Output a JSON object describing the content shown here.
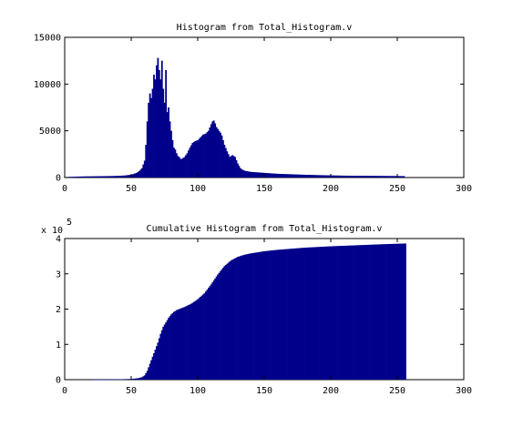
{
  "chart_data": [
    {
      "type": "bar",
      "title": "Histogram from Total_Histogram.v",
      "xlabel": "",
      "ylabel": "",
      "xlim": [
        0,
        300
      ],
      "ylim": [
        0,
        15000
      ],
      "xticks": [
        0,
        50,
        100,
        150,
        200,
        250,
        300
      ],
      "xtick_labels": [
        "0",
        "50",
        "100",
        "150",
        "200",
        "250",
        "300"
      ],
      "yticks": [
        0,
        5000,
        10000,
        15000
      ],
      "ytick_labels": [
        "0",
        "5000",
        "10000",
        "15000"
      ],
      "grid": false,
      "bar_color": "#00008b",
      "series_x": [
        0,
        5,
        10,
        15,
        20,
        25,
        30,
        35,
        40,
        45,
        50,
        52,
        54,
        56,
        58,
        60,
        61,
        62,
        63,
        64,
        65,
        66,
        67,
        68,
        69,
        70,
        71,
        72,
        73,
        74,
        75,
        76,
        77,
        78,
        79,
        80,
        81,
        82,
        83,
        84,
        85,
        86,
        87,
        88,
        89,
        90,
        92,
        94,
        96,
        98,
        100,
        102,
        104,
        106,
        108,
        110,
        111,
        112,
        113,
        114,
        115,
        116,
        117,
        118,
        119,
        120,
        122,
        124,
        126,
        128,
        130,
        132,
        134,
        136,
        140,
        145,
        150,
        160,
        170,
        180,
        190,
        200,
        210,
        220,
        230,
        240,
        250,
        255
      ],
      "series_y": [
        50,
        80,
        100,
        120,
        130,
        140,
        150,
        160,
        180,
        220,
        300,
        400,
        500,
        700,
        1000,
        1800,
        3500,
        6000,
        8000,
        9000,
        8500,
        9500,
        11000,
        10500,
        12000,
        12800,
        11500,
        10500,
        12500,
        9500,
        8000,
        11500,
        7000,
        7500,
        6000,
        5000,
        4000,
        3200,
        3000,
        2600,
        2300,
        2200,
        2000,
        2000,
        2100,
        2200,
        2600,
        3200,
        3700,
        3900,
        4000,
        4300,
        4600,
        4700,
        5000,
        5700,
        6000,
        6100,
        5800,
        5400,
        5200,
        5000,
        4800,
        4500,
        4000,
        3500,
        2800,
        2200,
        2400,
        2200,
        1500,
        1000,
        800,
        700,
        600,
        550,
        500,
        400,
        350,
        300,
        260,
        230,
        200,
        190,
        180,
        170,
        160,
        150
      ]
    },
    {
      "type": "area",
      "title": "Cumulative Histogram from Total_Histogram.v",
      "xlabel": "",
      "ylabel": "",
      "xlim": [
        0,
        300
      ],
      "ylim": [
        0,
        4
      ],
      "y_exponent_label": "x 10",
      "y_exponent_power": "5",
      "xticks": [
        0,
        50,
        100,
        150,
        200,
        250,
        300
      ],
      "xtick_labels": [
        "0",
        "50",
        "100",
        "150",
        "200",
        "250",
        "300"
      ],
      "yticks": [
        0,
        1,
        2,
        3,
        4
      ],
      "ytick_labels": [
        "0",
        "1",
        "2",
        "3",
        "4"
      ],
      "grid": false,
      "bar_color": "#00008b",
      "series_x": [
        8,
        20,
        30,
        40,
        50,
        55,
        58,
        60,
        62,
        64,
        66,
        68,
        70,
        72,
        74,
        76,
        78,
        80,
        82,
        84,
        86,
        88,
        90,
        95,
        100,
        105,
        110,
        115,
        120,
        125,
        130,
        135,
        140,
        150,
        160,
        170,
        180,
        200,
        220,
        240,
        256
      ],
      "series_y": [
        0.0,
        0.0,
        0.005,
        0.01,
        0.02,
        0.04,
        0.07,
        0.12,
        0.25,
        0.45,
        0.65,
        0.85,
        1.05,
        1.3,
        1.5,
        1.62,
        1.75,
        1.85,
        1.92,
        1.97,
        2.0,
        2.03,
        2.06,
        2.15,
        2.28,
        2.45,
        2.7,
        2.98,
        3.22,
        3.38,
        3.48,
        3.54,
        3.58,
        3.64,
        3.68,
        3.71,
        3.74,
        3.78,
        3.81,
        3.84,
        3.86
      ]
    }
  ]
}
